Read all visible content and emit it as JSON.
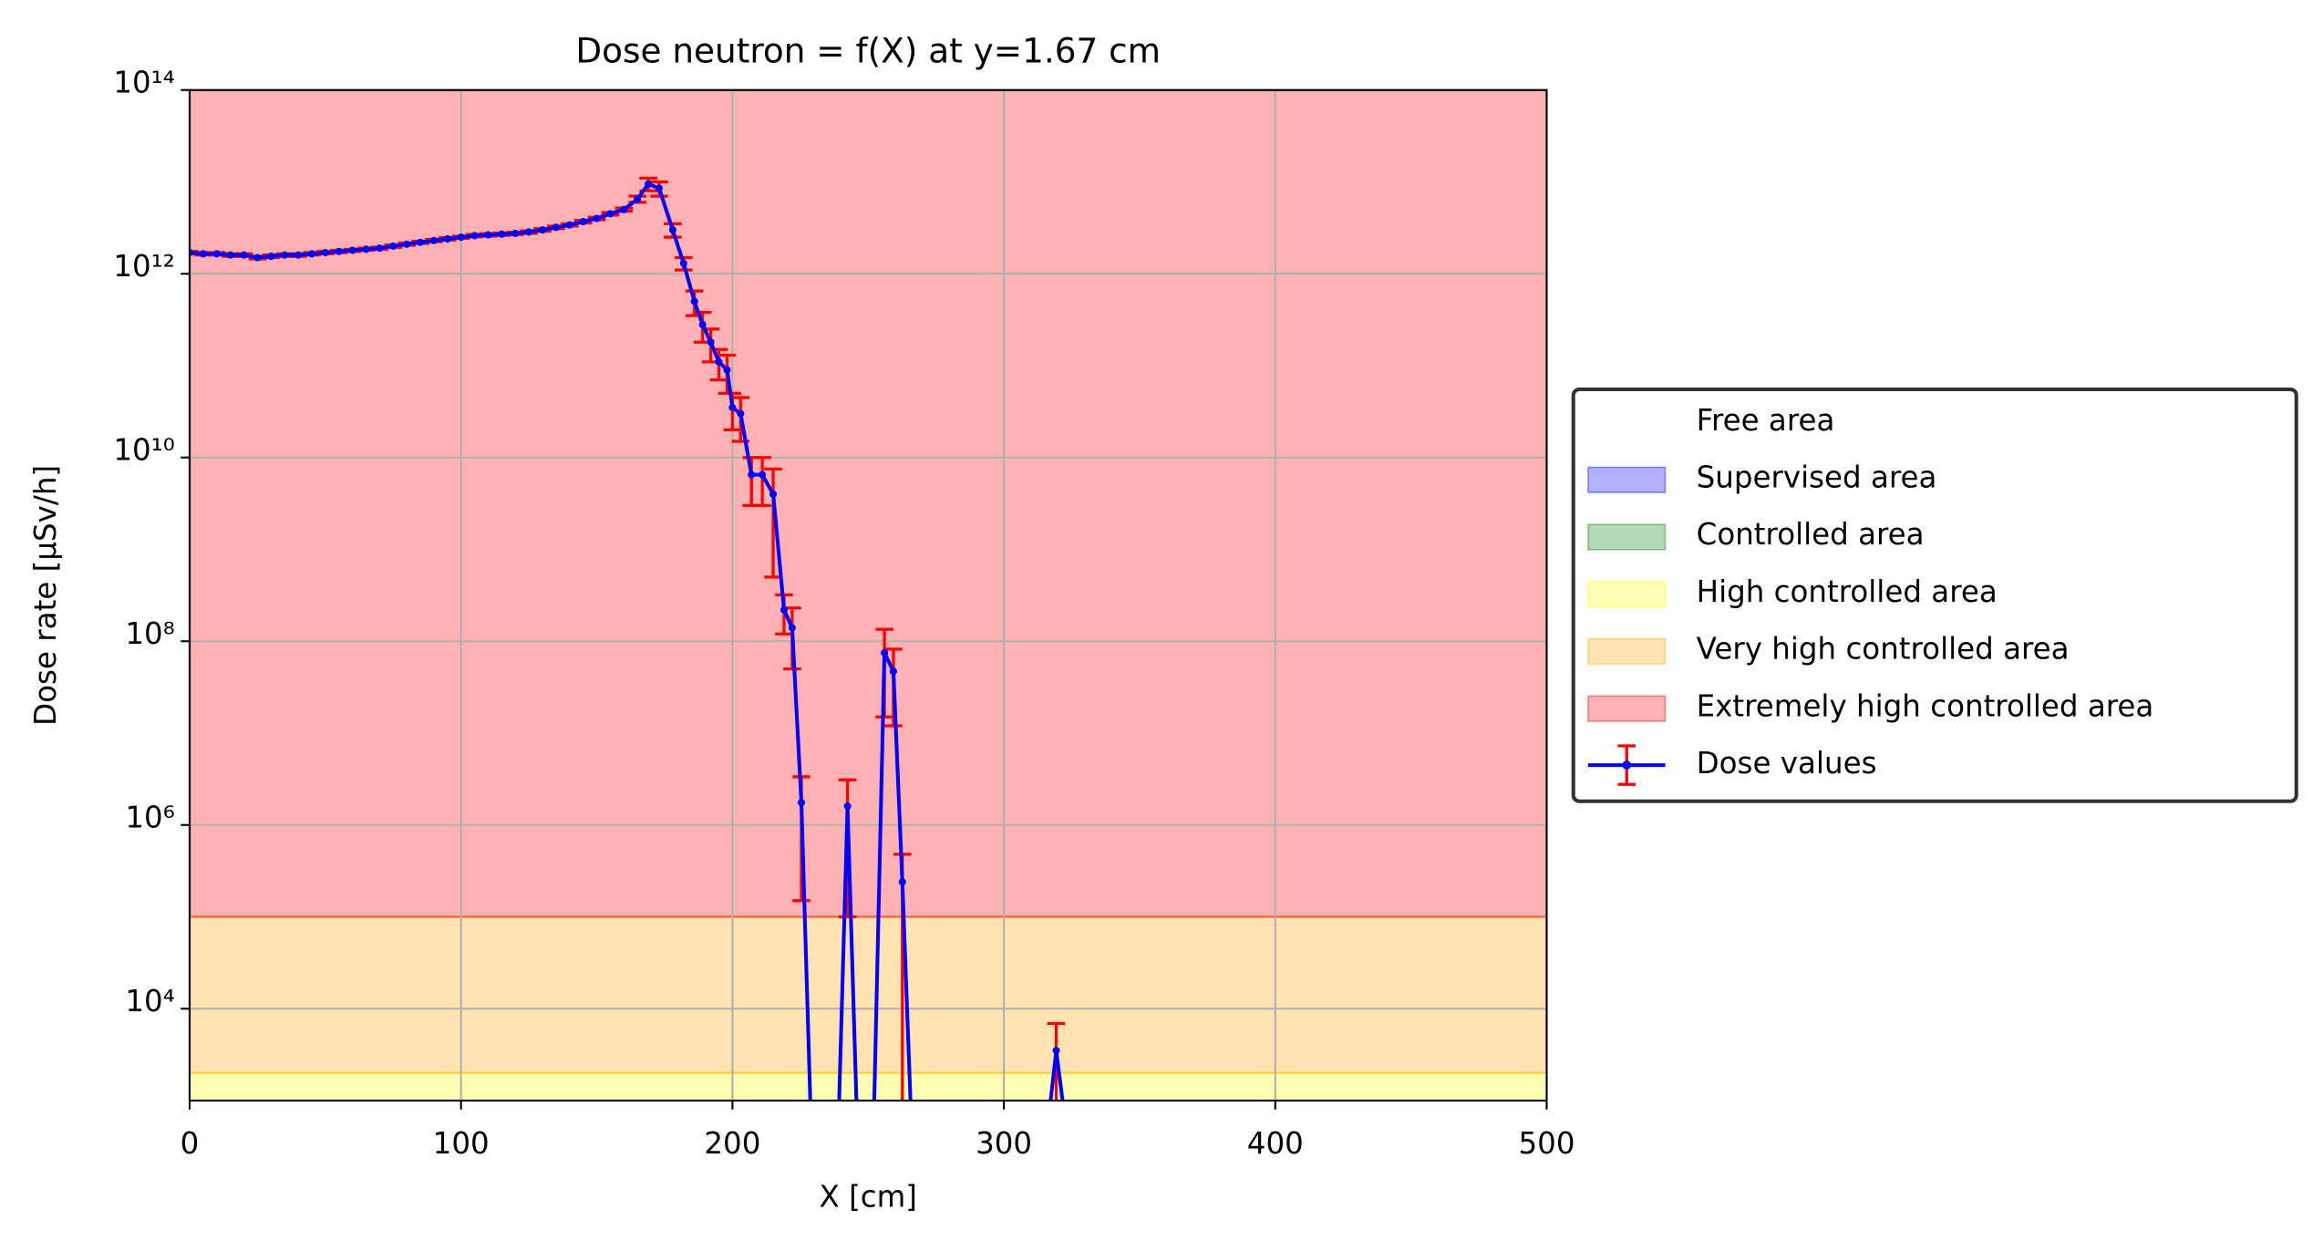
{
  "chart_data": {
    "type": "line",
    "title": "Dose neutron = f(X) at y=1.67 cm",
    "x_label": "X [cm]",
    "y_label": "Dose rate [µSv/h]",
    "xlim": [
      0,
      500
    ],
    "xticks": [
      0,
      100,
      200,
      300,
      400,
      500
    ],
    "ylim": [
      1000,
      100000000000000
    ],
    "y_scale": "log",
    "yticks": [
      {
        "value": 10000,
        "label": "10⁴"
      },
      {
        "value": 1000000,
        "label": "10⁶"
      },
      {
        "value": 100000000,
        "label": "10⁸"
      },
      {
        "value": 10000000000,
        "label": "10¹⁰"
      },
      {
        "value": 1000000000000,
        "label": "10¹²"
      },
      {
        "value": 100000000000000,
        "label": "10¹⁴"
      }
    ],
    "grid": true,
    "legend": "right",
    "zones": [
      {
        "name": "Free area",
        "color": "#ffffff"
      },
      {
        "name": "Supervised area",
        "color": "#0000ff"
      },
      {
        "name": "Controlled area",
        "color": "#008000"
      },
      {
        "name": "High controlled area",
        "color": "#ffff00",
        "range": [
          1000,
          2000
        ]
      },
      {
        "name": "Very high controlled area",
        "color": "#ffa500",
        "range": [
          2000,
          100000
        ]
      },
      {
        "name": "Extremely high controlled area",
        "color": "#ff0000",
        "range": [
          100000,
          100000000000000
        ]
      }
    ],
    "series": [
      {
        "name": "Dose values",
        "color": "#0000ff",
        "error_color": "#ff0000",
        "x": [
          0,
          5,
          10,
          15,
          20,
          25,
          30,
          35,
          40,
          45,
          50,
          55,
          60,
          65,
          70,
          75,
          80,
          85,
          90,
          95,
          100,
          105,
          110,
          115,
          120,
          125,
          130,
          135,
          140,
          145,
          150,
          155,
          160,
          165,
          169,
          173,
          178,
          182,
          186,
          189,
          192,
          195,
          198,
          200,
          203,
          207,
          211,
          215,
          219,
          222,
          225.4,
          229,
          239,
          242.4,
          246,
          252,
          256,
          259.3,
          262.6,
          266,
          316,
          319.3,
          323
        ],
        "values": [
          1700000000000.0,
          1650000000000.0,
          1650000000000.0,
          1600000000000.0,
          1600000000000.0,
          1500000000000.0,
          1550000000000.0,
          1600000000000.0,
          1600000000000.0,
          1650000000000.0,
          1700000000000.0,
          1750000000000.0,
          1800000000000.0,
          1850000000000.0,
          1900000000000.0,
          2000000000000.0,
          2100000000000.0,
          2200000000000.0,
          2300000000000.0,
          2400000000000.0,
          2500000000000.0,
          2600000000000.0,
          2650000000000.0,
          2700000000000.0,
          2750000000000.0,
          2850000000000.0,
          3000000000000.0,
          3200000000000.0,
          3400000000000.0,
          3700000000000.0,
          4000000000000.0,
          4500000000000.0,
          5000000000000.0,
          6500000000000.0,
          9500000000000.0,
          8500000000000.0,
          3000000000000.0,
          1300000000000.0,
          500000000000.0,
          280000000000.0,
          180000000000.0,
          110000000000.0,
          90000000000.0,
          35000000000.0,
          30000000000.0,
          6500000000.0,
          6500000000.0,
          4000000000.0,
          220000000.0,
          140000000.0,
          1750000.0,
          0,
          0,
          1600000.0,
          0,
          0,
          75000000.0,
          47000000.0,
          240000.0,
          0,
          0,
          3500,
          0
        ],
        "errors": [
          50000000000.0,
          50000000000.0,
          50000000000.0,
          50000000000.0,
          50000000000.0,
          50000000000.0,
          50000000000.0,
          50000000000.0,
          50000000000.0,
          50000000000.0,
          50000000000.0,
          50000000000.0,
          50000000000.0,
          50000000000.0,
          50000000000.0,
          60000000000.0,
          60000000000.0,
          60000000000.0,
          70000000000.0,
          70000000000.0,
          70000000000.0,
          80000000000.0,
          80000000000.0,
          80000000000.0,
          80000000000.0,
          90000000000.0,
          100000000000.0,
          100000000000.0,
          100000000000.0,
          120000000000.0,
          130000000000.0,
          150000000000.0,
          200000000000.0,
          500000000000.0,
          1500000000000.0,
          1500000000000.0,
          500000000000.0,
          200000000000.0,
          150000000000.0,
          100000000000.0,
          70000000000.0,
          40000000000.0,
          40000000000.0,
          15000000000.0,
          15000000000.0,
          3500000000.0,
          3500000000.0,
          3500000000.0,
          100000000.0,
          90000000.0,
          1600000.0,
          null,
          null,
          1500000.0,
          null,
          null,
          60000000.0,
          35000000.0,
          240000.0,
          null,
          null,
          3400,
          null
        ]
      }
    ]
  }
}
